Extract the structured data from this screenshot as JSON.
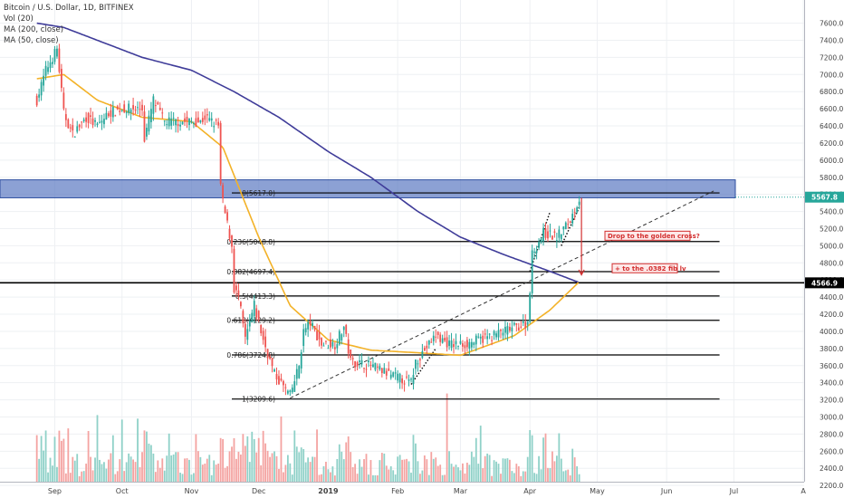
{
  "legend": {
    "symbol": "Bitcoin / U.S. Dollar, 1D, BITFINEX",
    "vol": "Vol (20)",
    "ma200": "MA (200, close)",
    "ma50": "MA (50, close)"
  },
  "colors": {
    "up": "#26a69a",
    "down": "#ef5350",
    "vol_up": "#8fd1c8",
    "vol_down": "#f4a3a1",
    "ma200": "#3f3c99",
    "ma50": "#f3b228",
    "zone": "#5b79c2",
    "annotation": "#d32f2f"
  },
  "chart_data": {
    "type": "candlestick",
    "x_ticks": [
      "Sep",
      "Oct",
      "Nov",
      "Dec",
      "2019",
      "Feb",
      "Mar",
      "Apr",
      "May",
      "Jun",
      "Jul",
      "A"
    ],
    "y_ticks": [
      2200,
      2400,
      2600,
      2800,
      3000,
      3200,
      3400,
      3600,
      3800,
      4000,
      4200,
      4400,
      4600,
      4800,
      5000,
      5200,
      5400,
      5600,
      5800,
      6000,
      6200,
      6400,
      6600,
      6800,
      7000,
      7200,
      7400,
      7600
    ],
    "y_tick_labels": [
      "2200.0",
      "2400.0",
      "2600.0",
      "2800.0",
      "3000.0",
      "3200.0",
      "3400.0",
      "3600.0",
      "3800.0",
      "4000.0",
      "4200.0",
      "4400.0",
      "4600.0",
      "4800.0",
      "5000.0",
      "5200.0",
      "5400.0",
      "5600.0",
      "5800.0",
      "6000.0",
      "6200.0",
      "6400.0",
      "6600.0",
      "6800.0",
      "7000.0",
      "7200.0",
      "7400.0",
      "7600.0"
    ],
    "price_markers": [
      {
        "label": "5567.8",
        "value": 5567.8
      },
      {
        "label": "4566.9",
        "value": 4566.9
      }
    ],
    "fib_levels": [
      {
        "label": "0(5617.0)",
        "value": 5617.0
      },
      {
        "label": "0.236(5048.8)",
        "value": 5048.8
      },
      {
        "label": "0.382(4697.4)",
        "value": 4697.4
      },
      {
        "label": "0.5(4413.3)",
        "value": 4413.3
      },
      {
        "label": "0.618(4129.2)",
        "value": 4129.2
      },
      {
        "label": "0.786(3724.8)",
        "value": 3724.8
      },
      {
        "label": "1(3209.6)",
        "value": 3209.6
      }
    ],
    "horizontal_line": 4566.9,
    "annotations": [
      "Drop to the golden cross?",
      "+ to the .0382 fib lv"
    ],
    "candle_anchors": [
      [
        "2018-08-24",
        6700
      ],
      [
        "2018-08-28",
        7050
      ],
      [
        "2018-09-02",
        7300
      ],
      [
        "2018-09-05",
        6550
      ],
      [
        "2018-09-09",
        6300
      ],
      [
        "2018-09-15",
        6500
      ],
      [
        "2018-09-20",
        6400
      ],
      [
        "2018-09-25",
        6550
      ],
      [
        "2018-10-01",
        6600
      ],
      [
        "2018-10-10",
        6600
      ],
      [
        "2018-10-11",
        6250
      ],
      [
        "2018-10-15",
        6700
      ],
      [
        "2018-10-20",
        6450
      ],
      [
        "2018-10-28",
        6450
      ],
      [
        "2018-11-05",
        6450
      ],
      [
        "2018-11-07",
        6500
      ],
      [
        "2018-11-13",
        6400
      ],
      [
        "2018-11-14",
        5700
      ],
      [
        "2018-11-15",
        5500
      ],
      [
        "2018-11-19",
        5000
      ],
      [
        "2018-11-20",
        4500
      ],
      [
        "2018-11-22",
        4400
      ],
      [
        "2018-11-25",
        3900
      ],
      [
        "2018-11-29",
        4300
      ],
      [
        "2018-12-03",
        3900
      ],
      [
        "2018-12-08",
        3500
      ],
      [
        "2018-12-15",
        3250
      ],
      [
        "2018-12-19",
        3600
      ],
      [
        "2018-12-21",
        4000
      ],
      [
        "2018-12-24",
        4100
      ],
      [
        "2018-12-29",
        3850
      ],
      [
        "2019-01-04",
        3850
      ],
      [
        "2019-01-08",
        4050
      ],
      [
        "2019-01-11",
        3650
      ],
      [
        "2019-01-20",
        3600
      ],
      [
        "2019-01-28",
        3500
      ],
      [
        "2019-02-07",
        3400
      ],
      [
        "2019-02-09",
        3650
      ],
      [
        "2019-02-18",
        3950
      ],
      [
        "2019-02-24",
        3850
      ],
      [
        "2019-03-03",
        3850
      ],
      [
        "2019-03-15",
        3950
      ],
      [
        "2019-03-31",
        4100
      ],
      [
        "2019-04-02",
        4900
      ],
      [
        "2019-04-07",
        5150
      ],
      [
        "2019-04-13",
        5100
      ],
      [
        "2019-04-19",
        5300
      ],
      [
        "2019-04-23",
        5550
      ]
    ],
    "ma200_anchors": [
      [
        "2018-08-24",
        7600
      ],
      [
        "2018-09-05",
        7550
      ],
      [
        "2018-09-20",
        7400
      ],
      [
        "2018-10-10",
        7200
      ],
      [
        "2018-11-01",
        7050
      ],
      [
        "2018-11-20",
        6800
      ],
      [
        "2018-12-10",
        6500
      ],
      [
        "2019-01-01",
        6100
      ],
      [
        "2019-01-20",
        5800
      ],
      [
        "2019-02-10",
        5400
      ],
      [
        "2019-03-01",
        5100
      ],
      [
        "2019-03-20",
        4900
      ],
      [
        "2019-04-10",
        4700
      ],
      [
        "2019-04-23",
        4570
      ]
    ],
    "ma50_anchors": [
      [
        "2018-08-24",
        6950
      ],
      [
        "2018-09-05",
        7000
      ],
      [
        "2018-09-20",
        6700
      ],
      [
        "2018-10-10",
        6500
      ],
      [
        "2018-11-01",
        6450
      ],
      [
        "2018-11-15",
        6150
      ],
      [
        "2018-12-01",
        5100
      ],
      [
        "2018-12-15",
        4300
      ],
      [
        "2019-01-01",
        3900
      ],
      [
        "2019-01-20",
        3780
      ],
      [
        "2019-02-10",
        3750
      ],
      [
        "2019-03-01",
        3720
      ],
      [
        "2019-03-25",
        3950
      ],
      [
        "2019-04-10",
        4250
      ],
      [
        "2019-04-23",
        4580
      ]
    ]
  }
}
